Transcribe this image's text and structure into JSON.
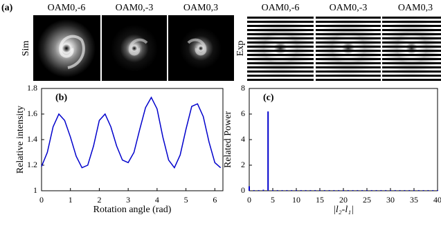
{
  "panel_a": {
    "label": "(a)",
    "sim_label": "Sim",
    "exp_label": "Exp",
    "sim_titles": [
      "OAM0,-6",
      "OAM0,-3",
      "OAM0,3"
    ],
    "exp_titles": [
      "OAM0,-6",
      "OAM0,-3",
      "OAM0,3"
    ]
  },
  "chart_data": [
    {
      "type": "line",
      "annotation": "(b)",
      "x_label": "Rotation angle (rad)",
      "y_label": "Relative  intensity",
      "color": "#0000cc",
      "x": [
        0,
        0.2,
        0.4,
        0.6,
        0.8,
        1.0,
        1.2,
        1.4,
        1.6,
        1.8,
        2.0,
        2.2,
        2.4,
        2.6,
        2.8,
        3.0,
        3.2,
        3.4,
        3.6,
        3.8,
        4.0,
        4.2,
        4.4,
        4.6,
        4.8,
        5.0,
        5.2,
        5.4,
        5.6,
        5.8,
        6.0,
        6.2
      ],
      "values": [
        1.19,
        1.3,
        1.5,
        1.6,
        1.55,
        1.42,
        1.27,
        1.18,
        1.2,
        1.35,
        1.55,
        1.6,
        1.5,
        1.35,
        1.24,
        1.22,
        1.3,
        1.48,
        1.65,
        1.73,
        1.64,
        1.42,
        1.24,
        1.18,
        1.28,
        1.48,
        1.66,
        1.68,
        1.58,
        1.38,
        1.22,
        1.18
      ],
      "xlim": [
        0,
        6.28
      ],
      "xticks": [
        0,
        1,
        2,
        3,
        4,
        5,
        6
      ],
      "ylim": [
        1,
        1.8
      ],
      "yticks": [
        1,
        1.2,
        1.4,
        1.6,
        1.8
      ]
    },
    {
      "type": "stem",
      "annotation": "(c)",
      "x_label": "|l₂-l₁|",
      "y_label": "Related Power",
      "color": "#0000cc",
      "x": [
        0,
        1,
        2,
        3,
        4,
        5,
        6,
        7,
        8,
        9,
        10,
        11,
        12,
        13,
        14,
        15,
        16,
        17,
        18,
        19,
        20,
        21,
        22,
        23,
        24,
        25,
        26,
        27,
        28,
        29,
        30,
        31,
        32,
        33,
        34,
        35,
        36,
        37,
        38,
        39,
        40
      ],
      "values": [
        0.35,
        0.05,
        0.05,
        0.08,
        6.2,
        0.05,
        0.05,
        0.05,
        0.05,
        0.05,
        0.05,
        0.05,
        0.05,
        0.05,
        0.05,
        0.05,
        0.05,
        0.05,
        0.05,
        0.05,
        0.05,
        0.05,
        0.05,
        0.05,
        0.05,
        0.05,
        0.05,
        0.05,
        0.05,
        0.05,
        0.05,
        0.05,
        0.05,
        0.05,
        0.05,
        0.05,
        0.05,
        0.05,
        0.05,
        0.05,
        0.05
      ],
      "xlim": [
        0,
        40
      ],
      "xticks": [
        0,
        5,
        10,
        15,
        20,
        25,
        30,
        35,
        40
      ],
      "ylim": [
        0,
        8
      ],
      "yticks": [
        0,
        2,
        4,
        6,
        8
      ]
    }
  ]
}
